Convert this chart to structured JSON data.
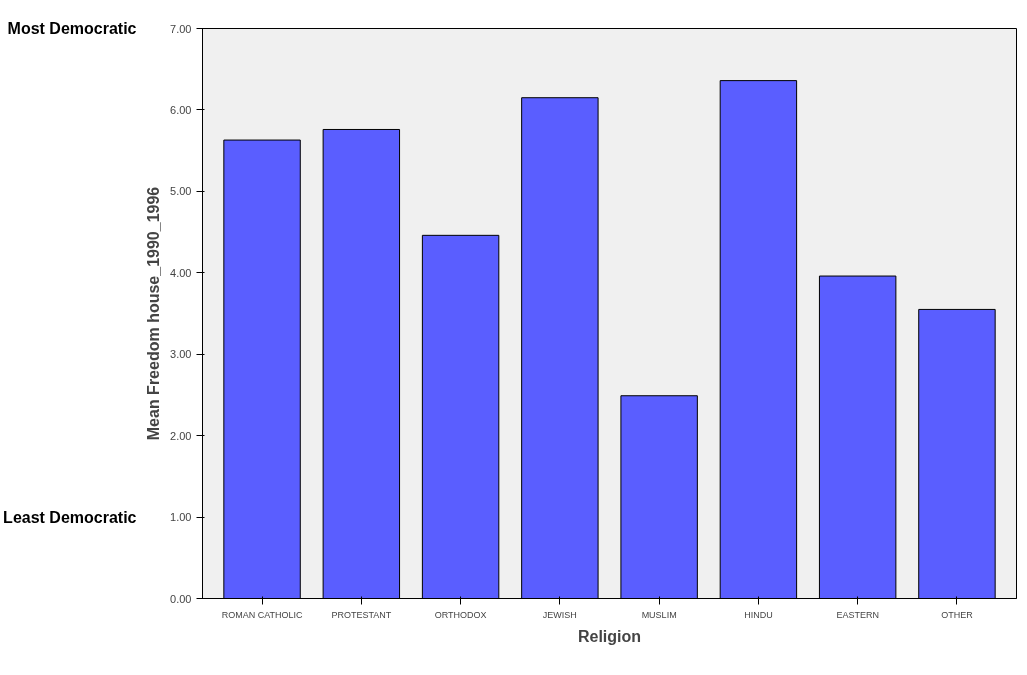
{
  "chart_data": {
    "type": "bar",
    "xlabel": "Religion",
    "ylabel": "Mean Freedom house_1990_1996",
    "categories": [
      "ROMAN CATHOLIC",
      "PROTESTANT",
      "ORTHODOX",
      "JEWISH",
      "MUSLIM",
      "HINDU",
      "EASTERN",
      "OTHER"
    ],
    "values": [
      5.63,
      5.76,
      4.46,
      6.15,
      2.49,
      6.36,
      3.96,
      3.55
    ],
    "color": "#5a5eff",
    "ylim": [
      0,
      7
    ],
    "yticks": [
      {
        "value": 0,
        "label": "0.00"
      },
      {
        "value": 1,
        "label": "1.00"
      },
      {
        "value": 2,
        "label": "2.00"
      },
      {
        "value": 3,
        "label": "3.00"
      },
      {
        "value": 4,
        "label": "4.00"
      },
      {
        "value": 5,
        "label": "5.00"
      },
      {
        "value": 6,
        "label": "6.00"
      },
      {
        "value": 7,
        "label": "7.00"
      }
    ],
    "grid": false,
    "annotations": [
      "Most Democratic",
      "Least Democratic"
    ]
  }
}
